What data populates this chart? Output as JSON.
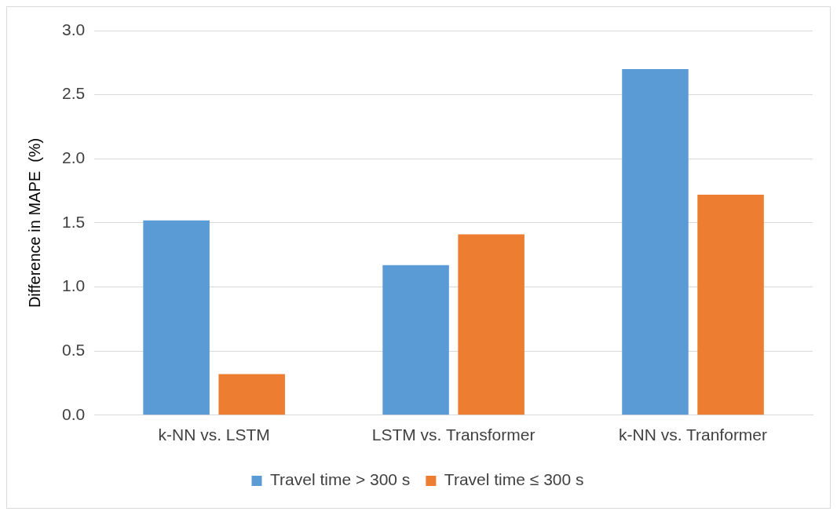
{
  "chart_data": {
    "type": "bar",
    "ylabel": "Difference in MAPE  (%)",
    "categories": [
      "k-NN vs. LSTM",
      "LSTM vs. Transformer",
      "k-NN vs. Tranformer"
    ],
    "series": [
      {
        "name": "Travel time > 300 s",
        "color": "#5b9bd5",
        "values": [
          1.52,
          1.17,
          2.7
        ]
      },
      {
        "name": "Travel time ≤ 300 s",
        "color": "#ed7d31",
        "values": [
          0.32,
          1.41,
          1.72
        ]
      }
    ],
    "ylim": [
      0,
      3
    ],
    "yticks": [
      {
        "value": 0,
        "label": "0.0"
      },
      0.5,
      {
        "value": 1,
        "label": "1.0"
      },
      1.5,
      {
        "value": 2,
        "label": "2.0"
      },
      2.5,
      {
        "value": 3,
        "label": "3.0"
      }
    ],
    "grid": "y",
    "legend": "bottom"
  }
}
